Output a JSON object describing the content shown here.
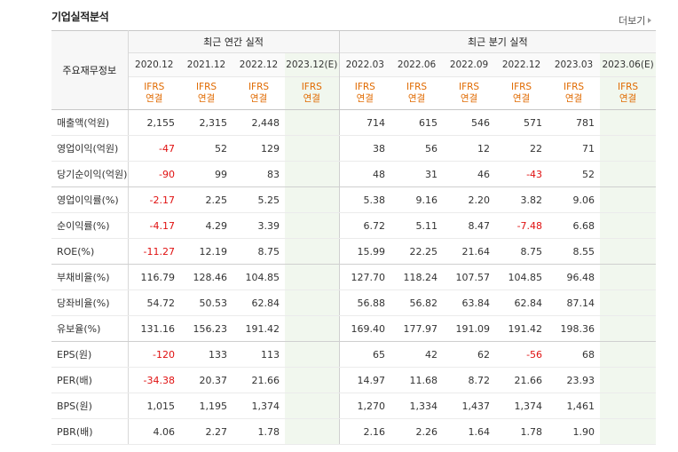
{
  "title": "기업실적분석",
  "more_label": "더보기",
  "header": {
    "row_label": "주요재무정보",
    "annual_group": "최근 연간 실적",
    "quarter_group": "최근 분기 실적",
    "periods": [
      "2020.12",
      "2021.12",
      "2022.12",
      "2023.12(E)",
      "2022.03",
      "2022.06",
      "2022.09",
      "2022.12",
      "2023.03",
      "2023.06(E)"
    ],
    "ifrs_top": "IFRS",
    "ifrs_bottom": "연결"
  },
  "rows": [
    {
      "label": "매출액(억원)",
      "values": [
        "2,155",
        "2,315",
        "2,448",
        "",
        "714",
        "615",
        "546",
        "571",
        "781",
        ""
      ]
    },
    {
      "label": "영업이익(억원)",
      "values": [
        "-47",
        "52",
        "129",
        "",
        "38",
        "56",
        "12",
        "22",
        "71",
        ""
      ]
    },
    {
      "label": "당기순이익(억원)",
      "values": [
        "-90",
        "99",
        "83",
        "",
        "48",
        "31",
        "46",
        "-43",
        "52",
        ""
      ]
    },
    {
      "label": "영업이익률(%)",
      "values": [
        "-2.17",
        "2.25",
        "5.25",
        "",
        "5.38",
        "9.16",
        "2.20",
        "3.82",
        "9.06",
        ""
      ]
    },
    {
      "label": "순이익률(%)",
      "values": [
        "-4.17",
        "4.29",
        "3.39",
        "",
        "6.72",
        "5.11",
        "8.47",
        "-7.48",
        "6.68",
        ""
      ]
    },
    {
      "label": "ROE(%)",
      "values": [
        "-11.27",
        "12.19",
        "8.75",
        "",
        "15.99",
        "22.25",
        "21.64",
        "8.75",
        "8.55",
        ""
      ]
    },
    {
      "label": "부채비율(%)",
      "values": [
        "116.79",
        "128.46",
        "104.85",
        "",
        "127.70",
        "118.24",
        "107.57",
        "104.85",
        "96.48",
        ""
      ]
    },
    {
      "label": "당좌비율(%)",
      "values": [
        "54.72",
        "50.53",
        "62.84",
        "",
        "56.88",
        "56.82",
        "63.84",
        "62.84",
        "87.14",
        ""
      ]
    },
    {
      "label": "유보율(%)",
      "values": [
        "131.16",
        "156.23",
        "191.42",
        "",
        "169.40",
        "177.97",
        "191.09",
        "191.42",
        "198.36",
        ""
      ]
    },
    {
      "label": "EPS(원)",
      "values": [
        "-120",
        "133",
        "113",
        "",
        "65",
        "42",
        "62",
        "-56",
        "68",
        ""
      ]
    },
    {
      "label": "PER(배)",
      "values": [
        "-34.38",
        "20.37",
        "21.66",
        "",
        "14.97",
        "11.68",
        "8.72",
        "21.66",
        "23.93",
        ""
      ]
    },
    {
      "label": "BPS(원)",
      "values": [
        "1,015",
        "1,195",
        "1,374",
        "",
        "1,270",
        "1,334",
        "1,437",
        "1,374",
        "1,461",
        ""
      ]
    },
    {
      "label": "PBR(배)",
      "values": [
        "4.06",
        "2.27",
        "1.78",
        "",
        "2.16",
        "2.26",
        "1.64",
        "1.78",
        "1.90",
        ""
      ]
    }
  ],
  "colors": {
    "negative": "#e01010",
    "ifrs": "#e06a00",
    "estimate_bg": "#f1f7ee"
  }
}
